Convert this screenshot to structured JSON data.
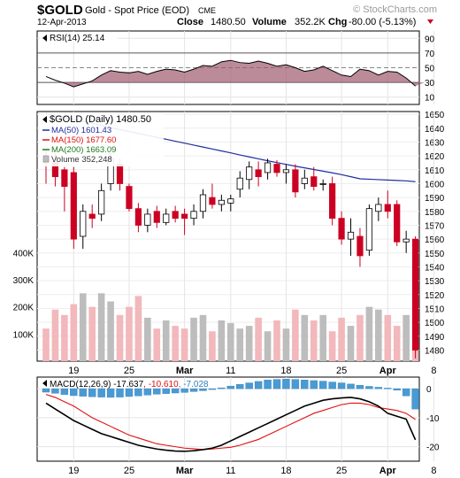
{
  "header": {
    "symbol": "$GOLD",
    "name": "Gold - Spot Price (EOD)",
    "exchange": "CME",
    "watermark": "© StockCharts.com",
    "date": "12-Apr-2013",
    "close_label": "Close",
    "close_value": "1480.50",
    "volume_label": "Volume",
    "volume_value": "352.2K",
    "chg_label": "Chg",
    "chg_value": "-80.00 (-5.13%)"
  },
  "colors": {
    "up": "#ffffff",
    "down": "#cc0022",
    "candle_edge": "#000000",
    "ma50": "#1f2e9c",
    "ma150": "#e01010",
    "ma200": "#1e7a1e",
    "vol_up": "#bdbdbd",
    "vol_down": "#f2b8bc",
    "macd_line": "#000000",
    "signal_line": "#e01010",
    "hist": "#4a9bd4"
  },
  "chart_data": [
    {
      "type": "line",
      "panel": "rsi",
      "legend": "RSI(14) 25.14",
      "ylim": [
        0,
        100
      ],
      "yticks": [
        90,
        70,
        50,
        30,
        10
      ],
      "overbought": 70,
      "oversold": 30,
      "values": [
        38,
        33,
        29,
        24,
        28,
        32,
        40,
        46,
        44,
        43,
        45,
        41,
        45,
        48,
        47,
        44,
        48,
        53,
        52,
        58,
        60,
        57,
        56,
        59,
        56,
        52,
        54,
        50,
        45,
        47,
        52,
        46,
        40,
        38,
        48,
        46,
        40,
        45,
        44,
        36,
        25
      ]
    },
    {
      "type": "candlestick",
      "panel": "price",
      "title": "$GOLD (Daily) 1480.50",
      "x_ticks": [
        "19",
        "25",
        "Mar",
        "11",
        "18",
        "25",
        "Apr",
        "8"
      ],
      "x_tick_bold": [
        "Mar",
        "Apr"
      ],
      "ylim": [
        1472,
        1652
      ],
      "yticks": [
        1650,
        1640,
        1630,
        1620,
        1610,
        1600,
        1590,
        1580,
        1570,
        1560,
        1550,
        1540,
        1530,
        1520,
        1510,
        1500,
        1490,
        1480
      ],
      "candles": [
        {
          "o": 1618,
          "h": 1625,
          "l": 1600,
          "c": 1615
        },
        {
          "o": 1616,
          "h": 1622,
          "l": 1598,
          "c": 1605
        },
        {
          "o": 1610,
          "h": 1612,
          "l": 1580,
          "c": 1598
        },
        {
          "o": 1608,
          "h": 1612,
          "l": 1553,
          "c": 1560
        },
        {
          "o": 1562,
          "h": 1585,
          "l": 1553,
          "c": 1580
        },
        {
          "o": 1578,
          "h": 1585,
          "l": 1568,
          "c": 1575
        },
        {
          "o": 1578,
          "h": 1600,
          "l": 1573,
          "c": 1595
        },
        {
          "o": 1600,
          "h": 1622,
          "l": 1595,
          "c": 1618
        },
        {
          "o": 1614,
          "h": 1618,
          "l": 1595,
          "c": 1600
        },
        {
          "o": 1598,
          "h": 1600,
          "l": 1580,
          "c": 1582
        },
        {
          "o": 1582,
          "h": 1586,
          "l": 1565,
          "c": 1570
        },
        {
          "o": 1570,
          "h": 1582,
          "l": 1565,
          "c": 1578
        },
        {
          "o": 1580,
          "h": 1584,
          "l": 1568,
          "c": 1572
        },
        {
          "o": 1572,
          "h": 1582,
          "l": 1570,
          "c": 1578
        },
        {
          "o": 1580,
          "h": 1584,
          "l": 1572,
          "c": 1575
        },
        {
          "o": 1578,
          "h": 1582,
          "l": 1563,
          "c": 1575
        },
        {
          "o": 1575,
          "h": 1585,
          "l": 1570,
          "c": 1580
        },
        {
          "o": 1580,
          "h": 1596,
          "l": 1575,
          "c": 1592
        },
        {
          "o": 1590,
          "h": 1600,
          "l": 1582,
          "c": 1585
        },
        {
          "o": 1585,
          "h": 1592,
          "l": 1580,
          "c": 1588
        },
        {
          "o": 1586,
          "h": 1592,
          "l": 1580,
          "c": 1589
        },
        {
          "o": 1596,
          "h": 1609,
          "l": 1590,
          "c": 1604
        },
        {
          "o": 1603,
          "h": 1616,
          "l": 1596,
          "c": 1612
        },
        {
          "o": 1610,
          "h": 1616,
          "l": 1598,
          "c": 1605
        },
        {
          "o": 1608,
          "h": 1618,
          "l": 1603,
          "c": 1615
        },
        {
          "o": 1614,
          "h": 1617,
          "l": 1605,
          "c": 1608
        },
        {
          "o": 1608,
          "h": 1614,
          "l": 1600,
          "c": 1610
        },
        {
          "o": 1610,
          "h": 1614,
          "l": 1590,
          "c": 1594
        },
        {
          "o": 1600,
          "h": 1610,
          "l": 1596,
          "c": 1604
        },
        {
          "o": 1605,
          "h": 1612,
          "l": 1595,
          "c": 1598
        },
        {
          "o": 1600,
          "h": 1603,
          "l": 1595,
          "c": 1600
        },
        {
          "o": 1600,
          "h": 1605,
          "l": 1570,
          "c": 1575
        },
        {
          "o": 1575,
          "h": 1580,
          "l": 1556,
          "c": 1560
        },
        {
          "o": 1560,
          "h": 1575,
          "l": 1548,
          "c": 1565
        },
        {
          "o": 1562,
          "h": 1568,
          "l": 1540,
          "c": 1548
        },
        {
          "o": 1552,
          "h": 1585,
          "l": 1548,
          "c": 1582
        },
        {
          "o": 1580,
          "h": 1590,
          "l": 1573,
          "c": 1585
        },
        {
          "o": 1585,
          "h": 1595,
          "l": 1575,
          "c": 1580
        },
        {
          "o": 1585,
          "h": 1588,
          "l": 1555,
          "c": 1558
        },
        {
          "o": 1558,
          "h": 1566,
          "l": 1550,
          "c": 1560
        },
        {
          "o": 1560,
          "h": 1562,
          "l": 1474,
          "c": 1480
        }
      ],
      "series": [
        {
          "name": "MA(50) 1601.43",
          "values": [
            1650.5,
            1649.0,
            1647.6,
            1646.2,
            1644.8,
            1643.4,
            1642.0,
            1640.4,
            1639.0,
            1637.6,
            1636.2,
            1634.8,
            1633.4,
            1632.0,
            1630.6,
            1629.2,
            1627.8,
            1626.4,
            1625.0,
            1623.6,
            1622.2,
            1620.7,
            1619.3,
            1617.9,
            1616.5,
            1615.2,
            1613.9,
            1612.6,
            1611.4,
            1610.2,
            1609.0,
            1607.8,
            1606.5,
            1605.0,
            1603.5,
            1603.2,
            1602.9,
            1602.6,
            1602.3,
            1602.0,
            1601.43
          ]
        },
        {
          "name": "MA(150) 1677.60",
          "values": []
        },
        {
          "name": "MA(200) 1663.09",
          "values": []
        },
        {
          "name": "Volume 352,248",
          "values": []
        }
      ],
      "volume": {
        "ylim": [
          0,
          500000
        ],
        "yticks": [
          400000,
          300000,
          200000,
          100000
        ],
        "ytick_labels": [
          "400K",
          "300K",
          "200K",
          "100K"
        ],
        "values": [
          120000,
          190000,
          170000,
          210000,
          250000,
          200000,
          250000,
          220000,
          170000,
          200000,
          240000,
          160000,
          120000,
          150000,
          130000,
          120000,
          160000,
          170000,
          110000,
          150000,
          140000,
          120000,
          130000,
          160000,
          110000,
          150000,
          120000,
          190000,
          170000,
          150000,
          170000,
          110000,
          160000,
          130000,
          170000,
          200000,
          190000,
          170000,
          130000,
          170000,
          352248
        ]
      }
    },
    {
      "type": "line",
      "panel": "macd",
      "legend": "MACD(12,26,9) -17.637, -10.610, -7.028",
      "ylim": [
        -25,
        4
      ],
      "yticks": [
        0,
        -10,
        -20
      ],
      "ytick_labels": [
        "0",
        "-10",
        "-20"
      ],
      "series": [
        {
          "name": "MACD(12,26,9) -17.637",
          "values": [
            -5.0,
            -7.0,
            -9.0,
            -11.0,
            -12.5,
            -14.0,
            -15.5,
            -16.5,
            -17.5,
            -18.5,
            -19.5,
            -20.2,
            -20.8,
            -21.2,
            -21.5,
            -21.6,
            -21.4,
            -21.0,
            -20.5,
            -19.5,
            -18.0,
            -16.5,
            -15.0,
            -13.5,
            -12.0,
            -10.5,
            -9.0,
            -7.5,
            -6.0,
            -5.0,
            -4.0,
            -3.5,
            -3.2,
            -3.0,
            -3.5,
            -4.5,
            -6.0,
            -8.5,
            -9.5,
            -10.5,
            -17.637
          ]
        },
        {
          "name": "MACD(12,26,9) -10.610",
          "values": [
            -2.0,
            -3.0,
            -4.5,
            -6.0,
            -8.0,
            -10.0,
            -11.5,
            -13.0,
            -14.5,
            -16.0,
            -17.0,
            -18.0,
            -19.0,
            -19.5,
            -20.0,
            -20.5,
            -20.7,
            -21.0,
            -20.8,
            -20.5,
            -20.2,
            -19.5,
            -18.5,
            -17.5,
            -16.0,
            -14.5,
            -13.0,
            -11.5,
            -10.0,
            -8.5,
            -7.5,
            -6.5,
            -5.5,
            -5.0,
            -5.0,
            -5.5,
            -6.5,
            -7.0,
            -7.5,
            -8.5,
            -10.61
          ]
        },
        {
          "name": "MACD(12,26,9) -7.028",
          "values": [
            -1.2,
            -1.6,
            -2.0,
            -2.4,
            -2.6,
            -2.8,
            -2.9,
            -3.0,
            -2.9,
            -2.7,
            -2.5,
            -2.2,
            -1.9,
            -1.7,
            -1.5,
            -1.3,
            -1.0,
            -0.7,
            -0.3,
            0.3,
            0.9,
            1.5,
            2.0,
            2.5,
            3.0,
            3.2,
            3.3,
            3.2,
            3.0,
            2.8,
            2.6,
            2.3,
            2.0,
            1.6,
            1.2,
            0.8,
            0.5,
            0.2,
            -0.5,
            -2.5,
            -7.028
          ]
        }
      ]
    }
  ]
}
